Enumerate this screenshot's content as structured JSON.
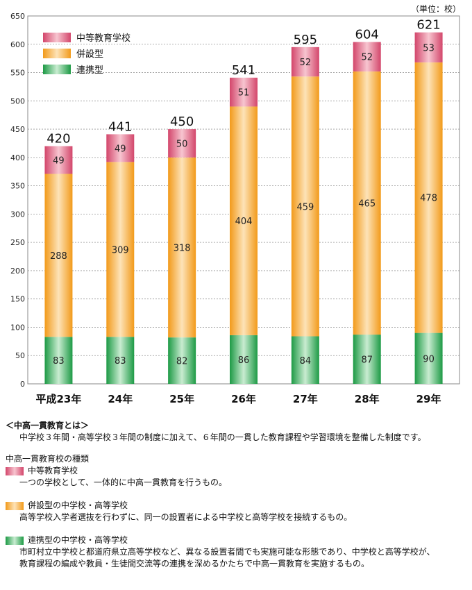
{
  "chart_data": {
    "type": "bar",
    "stacked": true,
    "unit_label": "（単位：校）",
    "categories": [
      "平成23年",
      "24年",
      "25年",
      "26年",
      "27年",
      "28年",
      "29年"
    ],
    "series": [
      {
        "name": "連携型",
        "values": [
          83,
          83,
          82,
          86,
          84,
          87,
          90
        ],
        "color": "#1d9a45"
      },
      {
        "name": "併設型",
        "values": [
          288,
          309,
          318,
          404,
          459,
          465,
          478
        ],
        "color": "#f29a1a"
      },
      {
        "name": "中等教育学校",
        "values": [
          49,
          49,
          50,
          51,
          52,
          52,
          53
        ],
        "color": "#d3466b"
      }
    ],
    "totals": [
      420,
      441,
      450,
      541,
      595,
      604,
      621
    ],
    "ylim": [
      0,
      650
    ],
    "yticks": [
      0,
      50,
      100,
      150,
      200,
      250,
      300,
      350,
      400,
      450,
      500,
      550,
      600,
      650
    ],
    "grid": true,
    "legend_position": "top-left",
    "legend_order": [
      "中等教育学校",
      "併設型",
      "連携型"
    ]
  },
  "notes": {
    "heading": "＜中高一貫教育とは＞",
    "definition": "中学校３年間・高等学校３年間の制度に加えて、６年間の一貫した教育課程や学習環境を整備した制度です。",
    "types_heading": "中高一貫教育校の種類",
    "types": [
      {
        "label": "中等教育学校",
        "lines": [
          "一つの学校として、一体的に中高一貫教育を行うもの。"
        ]
      },
      {
        "label": "併設型の中学校・高等学校",
        "lines": [
          "高等学校入学者選抜を行わずに、同一の設置者による中学校と高等学校を接続するもの。"
        ]
      },
      {
        "label": "連携型の中学校・高等学校",
        "lines": [
          "市町村立中学校と都道府県立高等学校など、異なる設置者間でも実施可能な形態であり、中学校と高等学校が、",
          "教育課程の編成や教員・生徒間交流等の連携を深めるかたちで中高一貫教育を実施するもの。"
        ]
      }
    ]
  }
}
